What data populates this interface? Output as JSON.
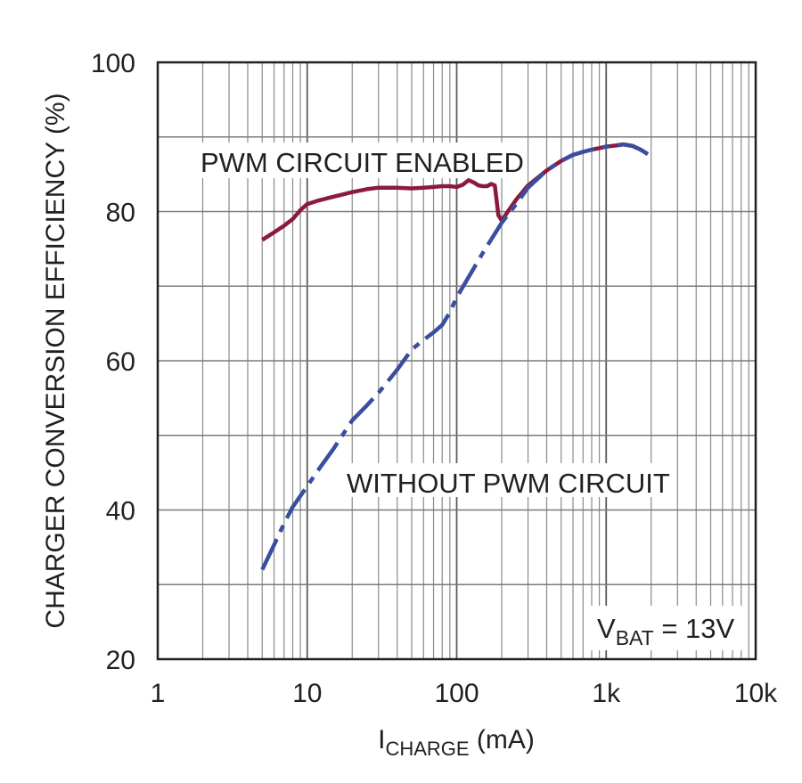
{
  "chart_data": {
    "type": "line",
    "xscale": "log",
    "xlim": [
      1,
      10000
    ],
    "ylim": [
      20,
      100
    ],
    "grid": true,
    "xticks": [
      1,
      10,
      100,
      1000,
      10000
    ],
    "xtick_labels": [
      "1",
      "10",
      "100",
      "1k",
      "10k"
    ],
    "yticks": [
      20,
      40,
      60,
      80,
      100
    ],
    "ytick_labels": [
      "20",
      "40",
      "60",
      "80",
      "100"
    ],
    "xlabel": {
      "main": "I",
      "sub": "CHARGE",
      "unit": " (mA)"
    },
    "ylabel": "CHARGER CONVERSION EFFICIENCY (%)",
    "annotation": {
      "main": "V",
      "sub": "BAT",
      "rest": " = 13V"
    },
    "series": [
      {
        "name": "PWM CIRCUIT ENABLED",
        "color": "#8b1a3c",
        "style": "solid",
        "x": [
          5,
          6,
          7,
          8,
          9,
          10,
          12,
          15,
          20,
          25,
          30,
          40,
          50,
          60,
          70,
          80,
          90,
          100,
          110,
          120,
          130,
          140,
          150,
          160,
          170,
          180,
          190,
          200,
          220,
          250,
          300,
          400,
          500,
          600,
          700,
          800,
          900,
          1000,
          1100,
          1200,
          1300,
          1400,
          1500,
          1700,
          1900
        ],
        "y": [
          76.2,
          77.2,
          78.1,
          79.0,
          80.2,
          81.0,
          81.5,
          82.0,
          82.6,
          83.0,
          83.2,
          83.2,
          83.1,
          83.2,
          83.3,
          83.4,
          83.4,
          83.3,
          83.6,
          84.2,
          83.9,
          83.5,
          83.4,
          83.4,
          83.7,
          83.5,
          79.5,
          78.8,
          80.0,
          81.6,
          83.5,
          85.5,
          86.8,
          87.6,
          88.0,
          88.3,
          88.5,
          88.7,
          88.8,
          88.9,
          89.0,
          88.9,
          88.8,
          88.3,
          87.7
        ]
      },
      {
        "name": "WITHOUT PWM CIRCUIT",
        "color": "#3a4ea0",
        "style": "dashed",
        "x": [
          5,
          6,
          7,
          8,
          10,
          12,
          15,
          20,
          25,
          30,
          40,
          50,
          60,
          70,
          80,
          90,
          100,
          120,
          150,
          200,
          250,
          300,
          400,
          500,
          600,
          700,
          800,
          900,
          1000,
          1100,
          1200,
          1300,
          1400,
          1500,
          1700,
          1900
        ],
        "y": [
          32.0,
          35.3,
          38.2,
          40.4,
          43.2,
          45.5,
          48.2,
          52.0,
          54.0,
          55.7,
          58.8,
          61.5,
          62.8,
          63.8,
          64.8,
          66.5,
          68.5,
          71.2,
          74.5,
          78.5,
          81.0,
          83.2,
          85.5,
          86.8,
          87.6,
          88.0,
          88.3,
          88.5,
          88.7,
          88.8,
          88.9,
          89.0,
          88.9,
          88.8,
          88.3,
          87.7
        ]
      }
    ]
  }
}
